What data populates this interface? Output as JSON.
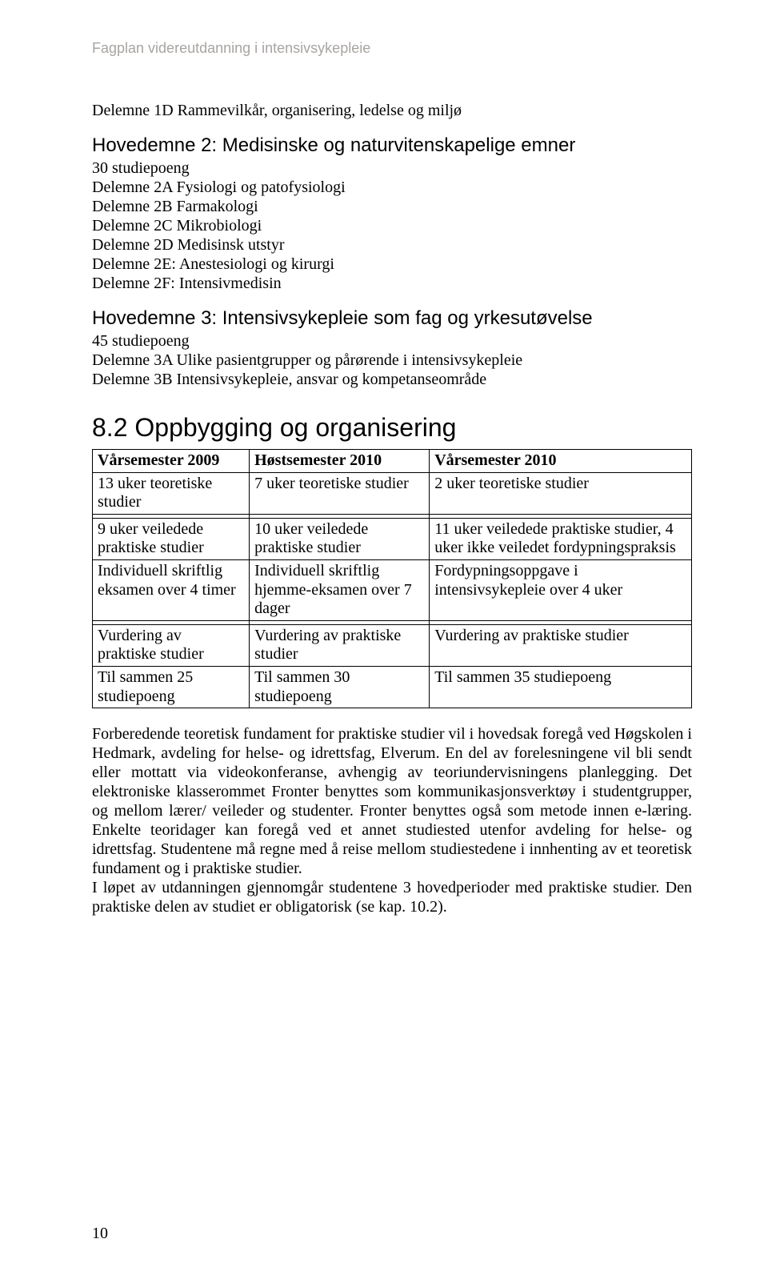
{
  "header": "Fagplan videreutdanning i intensivsykepleie",
  "d1": "Delemne 1D Rammevilkår, organisering, ledelse og miljø",
  "h2_title": "Hovedemne 2: Medisinske og naturvitenskapelige emner",
  "h2_credits": "30 studiepoeng",
  "h2_items": {
    "a": "Delemne 2A Fysiologi og patofysiologi",
    "b": "Delemne 2B Farmakologi",
    "c": "Delemne 2C Mikrobiologi",
    "d": "Delemne 2D Medisinsk utstyr",
    "e": "Delemne 2E: Anestesiologi og kirurgi",
    "f": "Delemne 2F: Intensivmedisin"
  },
  "h3_title": "Hovedemne 3: Intensivsykepleie som fag og yrkesutøvelse",
  "h3_credits": "45 studiepoeng",
  "h3_items": {
    "a": "Delemne 3A Ulike pasientgrupper og pårørende i intensivsykepleie",
    "b": "Delemne 3B Intensivsykepleie, ansvar og kompetanseområde"
  },
  "section82": "8.2   Oppbygging og organisering",
  "table": {
    "r0": {
      "c0": "Vårsemester 2009",
      "c1": "Høstsemester 2010",
      "c2": "Vårsemester 2010"
    },
    "r1": {
      "c0": "13 uker teoretiske studier",
      "c1": "7 uker teoretiske studier",
      "c2": "2 uker teoretiske studier"
    },
    "r2": {
      "c0": " ",
      "c1": " ",
      "c2": " "
    },
    "r3": {
      "c0": "9 uker veiledede praktiske studier",
      "c1": "10 uker veiledede praktiske studier",
      "c2": "11 uker veiledede praktiske studier, 4 uker ikke veiledet fordypningspraksis"
    },
    "r4": {
      "c0": "Individuell skriftlig eksamen over 4 timer",
      "c1": "Individuell skriftlig hjemme-eksamen over 7 dager",
      "c2": "Fordypningsoppgave i intensivsykepleie over 4 uker"
    },
    "r5": {
      "c0": " ",
      "c1": " ",
      "c2": " "
    },
    "r6": {
      "c0": "Vurdering av praktiske studier",
      "c1": "Vurdering av praktiske studier",
      "c2": "Vurdering av praktiske  studier"
    },
    "r7": {
      "c0": "Til sammen 25 studiepoeng",
      "c1": "Til sammen 30 studiepoeng",
      "c2": "Til sammen 35 studiepoeng"
    }
  },
  "para1": "Forberedende teoretisk fundament for praktiske studier vil i hovedsak foregå ved Høgskolen i Hedmark, avdeling for helse- og idrettsfag, Elverum. En del av forelesningene vil bli sendt eller mottatt via videokonferanse, avhengig av teoriundervisningens planlegging. Det elektroniske klasserommet Fronter benyttes som kommunikasjonsverktøy i studentgrupper, og mellom lærer/ veileder og studenter. Fronter benyttes også som metode innen e-læring. Enkelte teoridager kan foregå ved et annet studiested utenfor avdeling for helse- og idrettsfag. Studentene må regne med å reise mellom studiestedene i innhenting av et teoretisk fundament og i praktiske studier.",
  "para2": "I løpet av utdanningen gjennomgår studentene 3 hovedperioder med praktiske studier. Den praktiske delen av studiet er obligatorisk (se kap. 10.2).",
  "page_number": "10"
}
